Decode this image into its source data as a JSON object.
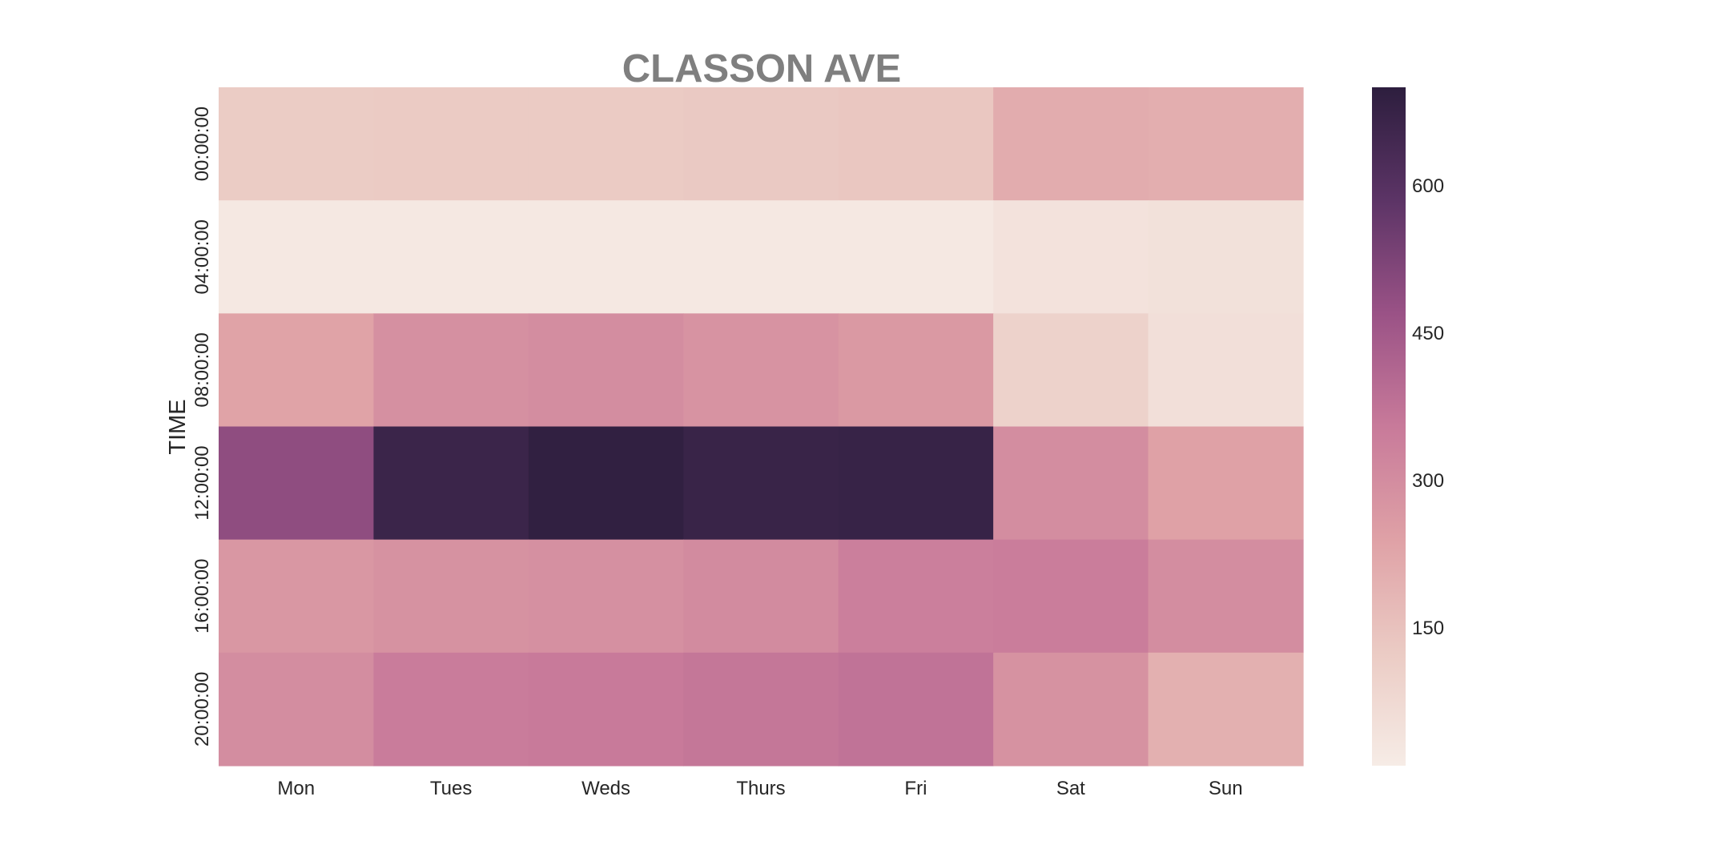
{
  "chart_data": {
    "type": "heatmap",
    "title": "CLASSON AVE",
    "xlabel": "",
    "ylabel": "TIME",
    "x_categories": [
      "Mon",
      "Tues",
      "Weds",
      "Thurs",
      "Fri",
      "Sat",
      "Sun"
    ],
    "y_categories": [
      "00:00:00",
      "04:00:00",
      "08:00:00",
      "12:00:00",
      "16:00:00",
      "20:00:00"
    ],
    "values": [
      [
        120,
        125,
        125,
        130,
        135,
        210,
        205
      ],
      [
        25,
        25,
        25,
        25,
        25,
        45,
        50
      ],
      [
        235,
        290,
        300,
        280,
        265,
        100,
        55
      ],
      [
        490,
        665,
        690,
        670,
        675,
        300,
        240
      ],
      [
        270,
        285,
        290,
        305,
        340,
        345,
        300
      ],
      [
        300,
        350,
        355,
        365,
        375,
        285,
        200
      ]
    ],
    "colorbar": {
      "range": [
        10,
        700
      ],
      "ticks": [
        150,
        300,
        450,
        600
      ],
      "colors": [
        "#f6ece6",
        "#ebcbc4",
        "#dfa1a6",
        "#c87a9a",
        "#9a5286",
        "#5c3466",
        "#2d1e3e"
      ]
    },
    "grid": false
  }
}
